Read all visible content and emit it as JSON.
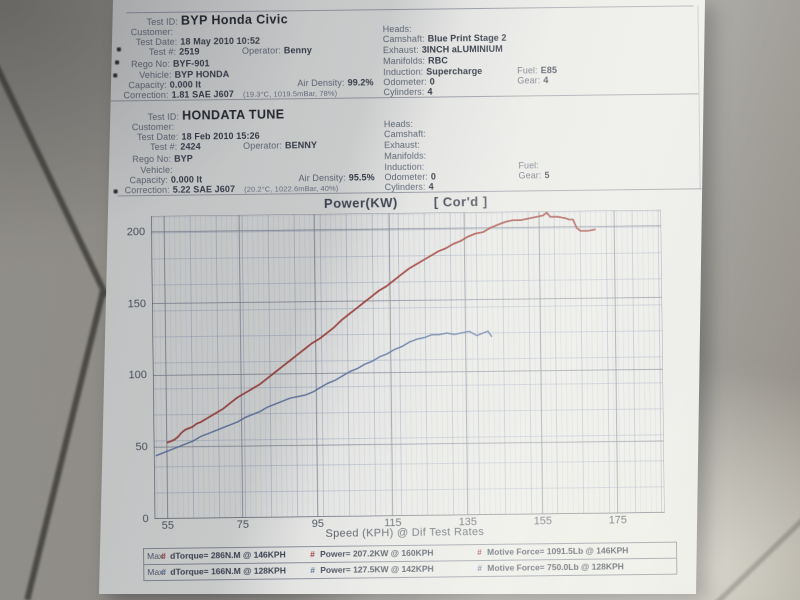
{
  "photo": {
    "paper_color": "#e4e5e3",
    "floor_color": "#9c9992",
    "red_series_color": "#9e3b34",
    "blue_series_color": "#56719f"
  },
  "tests": [
    {
      "test_id_label": "Test ID:",
      "test_id": "BYP Honda Civic",
      "left_lines": [
        {
          "label": "Customer:",
          "value": ""
        },
        {
          "label": "Test Date:",
          "value": "18 May 2010 10:52"
        },
        {
          "label": "Test #:",
          "value": "2519",
          "label2": "Operator:",
          "value2": "Benny"
        },
        {
          "label": "Rego No:",
          "value": "BYF-901"
        },
        {
          "label": "Vehicle:",
          "value": "BYP HONDA"
        },
        {
          "label": "Capacity:",
          "value": "0.000 lt",
          "label2": "Air Density:",
          "value2": "99.2%"
        },
        {
          "label": "Correction:",
          "value": "1.81 SAE J607",
          "note": "(19.3°C, 1019.5mBar, 78%)"
        }
      ],
      "right_lines": [
        {
          "label": "Heads:",
          "value": ""
        },
        {
          "label": "Camshaft:",
          "value": "Blue Print Stage 2"
        },
        {
          "label": "Exhaust:",
          "value": "3INCH aLUMINIUM"
        },
        {
          "label": "Manifolds:",
          "value": "RBC"
        },
        {
          "label": "Induction:",
          "value": "Supercharge",
          "label2": "Fuel:",
          "value2": "E85"
        },
        {
          "label": "Odometer:",
          "value": "0",
          "label2": "Gear:",
          "value2": "4"
        },
        {
          "label": "Cylinders:",
          "value": "4"
        }
      ]
    },
    {
      "test_id_label": "Test ID:",
      "test_id": "HONDATA TUNE",
      "left_lines": [
        {
          "label": "Customer:",
          "value": ""
        },
        {
          "label": "Test Date:",
          "value": "18 Feb 2010 15:26"
        },
        {
          "label": "Test #:",
          "value": "2424",
          "label2": "Operator:",
          "value2": "BENNY"
        },
        {
          "label": "Rego No:",
          "value": "BYP"
        },
        {
          "label": "Vehicle:",
          "value": ""
        },
        {
          "label": "Capacity:",
          "value": "0.000 lt",
          "label2": "Air Density:",
          "value2": "95.5%"
        },
        {
          "label": "Correction:",
          "value": "5.22 SAE J607",
          "note": "(20.2°C, 1022.6mBar, 40%)"
        }
      ],
      "right_lines": [
        {
          "label": "Heads:",
          "value": ""
        },
        {
          "label": "Camshaft:",
          "value": ""
        },
        {
          "label": "Exhaust:",
          "value": ""
        },
        {
          "label": "Manifolds:",
          "value": ""
        },
        {
          "label": "Induction:",
          "value": "",
          "label2": "Fuel:",
          "value2": ""
        },
        {
          "label": "Odometer:",
          "value": "0",
          "label2": "Gear:",
          "value2": "5"
        },
        {
          "label": "Cylinders:",
          "value": "4"
        }
      ]
    }
  ],
  "chart_data": {
    "type": "line",
    "title": "Power(KW)",
    "cord_label": "[ Cor'd ]",
    "xlabel": "Speed (KPH) @ Dif Test Rates",
    "ylabel": "",
    "xlim": [
      51.5,
      187.5
    ],
    "ylim": [
      0,
      211
    ],
    "x_ticks": [
      55,
      75,
      95,
      115,
      135,
      155,
      175
    ],
    "y_ticks": [
      0,
      50,
      100,
      150,
      200
    ],
    "grid": true,
    "legend_position": "none",
    "series": [
      {
        "name": "BYP Honda Civic",
        "color": "#9e3b34",
        "points": [
          [
            55,
            53
          ],
          [
            56,
            54
          ],
          [
            57,
            55
          ],
          [
            58,
            57
          ],
          [
            59,
            60
          ],
          [
            60,
            62
          ],
          [
            62,
            64
          ],
          [
            63,
            66
          ],
          [
            64,
            67
          ],
          [
            66,
            70
          ],
          [
            68,
            73
          ],
          [
            70,
            76
          ],
          [
            72,
            80
          ],
          [
            74,
            84
          ],
          [
            76,
            87
          ],
          [
            78,
            90
          ],
          [
            80,
            93
          ],
          [
            82,
            97
          ],
          [
            84,
            101
          ],
          [
            86,
            105
          ],
          [
            88,
            109
          ],
          [
            90,
            113
          ],
          [
            92,
            117
          ],
          [
            94,
            121
          ],
          [
            96,
            124
          ],
          [
            98,
            128
          ],
          [
            100,
            132
          ],
          [
            102,
            137
          ],
          [
            104,
            141
          ],
          [
            106,
            145
          ],
          [
            108,
            149
          ],
          [
            110,
            153
          ],
          [
            112,
            157
          ],
          [
            114,
            160
          ],
          [
            116,
            164
          ],
          [
            118,
            168
          ],
          [
            120,
            172
          ],
          [
            122,
            175
          ],
          [
            124,
            178
          ],
          [
            126,
            181
          ],
          [
            128,
            184
          ],
          [
            130,
            186
          ],
          [
            132,
            189
          ],
          [
            134,
            191
          ],
          [
            136,
            194
          ],
          [
            138,
            196
          ],
          [
            140,
            197
          ],
          [
            142,
            200
          ],
          [
            144,
            202
          ],
          [
            146,
            204
          ],
          [
            148,
            205
          ],
          [
            150,
            205
          ],
          [
            152,
            206
          ],
          [
            154,
            207
          ],
          [
            156,
            208
          ],
          [
            157,
            210
          ],
          [
            158,
            207
          ],
          [
            160,
            207
          ],
          [
            162,
            206
          ],
          [
            163,
            205
          ],
          [
            164,
            205
          ],
          [
            165,
            199
          ],
          [
            166,
            197
          ],
          [
            168,
            197
          ],
          [
            170,
            198
          ]
        ]
      },
      {
        "name": "HONDATA TUNE",
        "color": "#56719f",
        "points": [
          [
            52,
            44
          ],
          [
            54,
            46
          ],
          [
            56,
            48
          ],
          [
            58,
            50
          ],
          [
            60,
            52
          ],
          [
            62,
            54
          ],
          [
            64,
            57
          ],
          [
            66,
            59
          ],
          [
            68,
            61
          ],
          [
            70,
            63
          ],
          [
            72,
            65
          ],
          [
            74,
            67
          ],
          [
            76,
            70
          ],
          [
            78,
            72
          ],
          [
            80,
            74
          ],
          [
            82,
            77
          ],
          [
            84,
            79
          ],
          [
            86,
            81
          ],
          [
            88,
            83
          ],
          [
            90,
            84
          ],
          [
            92,
            85
          ],
          [
            94,
            87
          ],
          [
            96,
            90
          ],
          [
            98,
            93
          ],
          [
            100,
            95
          ],
          [
            102,
            98
          ],
          [
            104,
            101
          ],
          [
            106,
            103
          ],
          [
            108,
            106
          ],
          [
            110,
            108
          ],
          [
            112,
            111
          ],
          [
            114,
            113
          ],
          [
            116,
            116
          ],
          [
            118,
            118
          ],
          [
            120,
            121
          ],
          [
            122,
            123
          ],
          [
            124,
            124
          ],
          [
            126,
            126
          ],
          [
            128,
            126
          ],
          [
            130,
            127
          ],
          [
            132,
            126
          ],
          [
            134,
            127
          ],
          [
            136,
            128
          ],
          [
            138,
            125
          ],
          [
            140,
            127
          ],
          [
            141,
            128
          ],
          [
            142,
            124
          ]
        ]
      }
    ]
  },
  "results": {
    "rows": [
      {
        "prefix": "Max:",
        "marker": "#",
        "series": "BYP Honda Civic",
        "color": "#9e3b34",
        "torque": "dTorque= 286N.M @ 146KPH",
        "power": "Power= 207.2KW @ 160KPH",
        "motive_force": "Motive Force= 1091.5Lb @ 146KPH"
      },
      {
        "prefix": "Max:",
        "marker": "#",
        "series": "HONDATA TUNE",
        "color": "#56719f",
        "torque": "dTorque= 166N.M @ 128KPH",
        "power": "Power= 127.5KW @ 142KPH",
        "motive_force": "Motive Force= 750.0Lb @ 128KPH"
      }
    ]
  }
}
